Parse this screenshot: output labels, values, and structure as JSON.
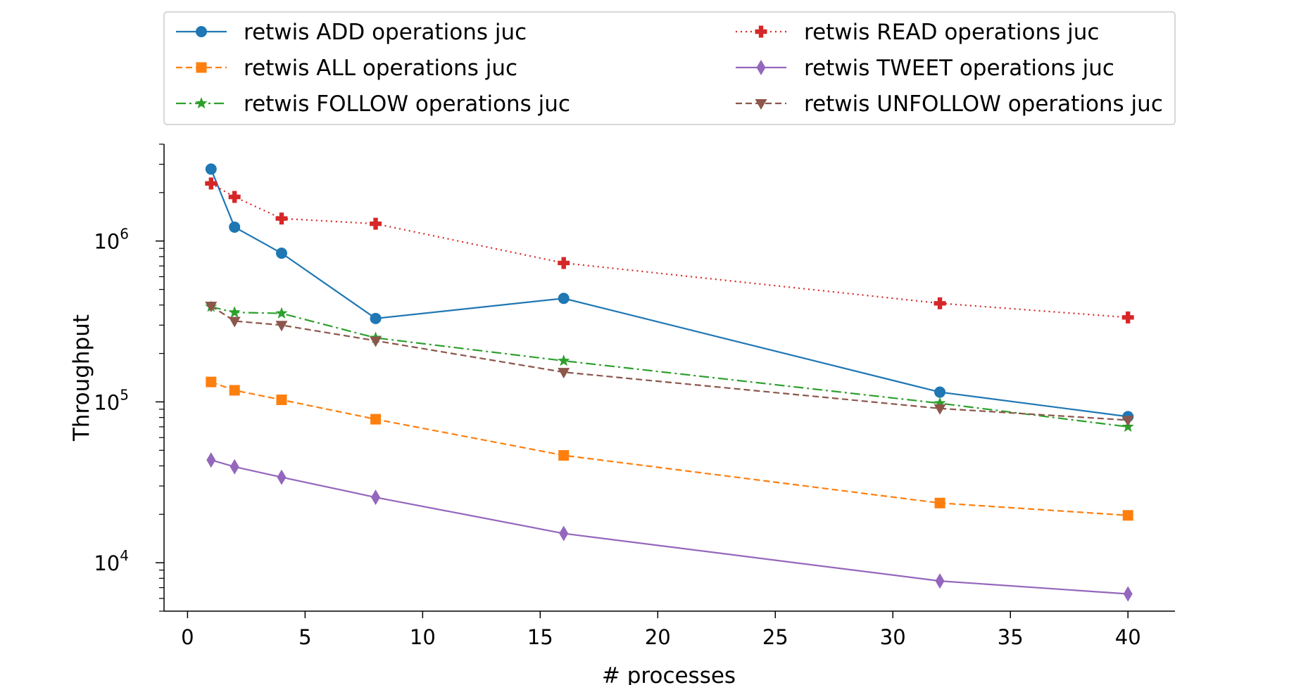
{
  "chart_data": {
    "type": "line",
    "xlabel": "# processes",
    "ylabel": "Throughput",
    "xlim": [
      -1,
      42
    ],
    "ylim": [
      5000,
      4000000
    ],
    "yscale": "log",
    "xticks": [
      0,
      5,
      10,
      15,
      20,
      25,
      30,
      35,
      40
    ],
    "yticks": [
      {
        "base": "10",
        "exp": "4",
        "value": 10000
      },
      {
        "base": "10",
        "exp": "5",
        "value": 100000
      },
      {
        "base": "10",
        "exp": "6",
        "value": 1000000
      }
    ],
    "grid": false,
    "legend_position": "top",
    "x": [
      1,
      2,
      4,
      8,
      16,
      32,
      40
    ],
    "series": [
      {
        "name": "retwis ADD operations juc",
        "color": "#1f77b4",
        "style": "solid",
        "marker": "circle",
        "values": [
          2800000,
          1220000,
          840000,
          330000,
          440000,
          115000,
          81000
        ]
      },
      {
        "name": "retwis ALL operations juc",
        "color": "#ff7f0e",
        "style": "dashed",
        "marker": "square",
        "values": [
          133000,
          118000,
          103000,
          78000,
          46500,
          23500,
          19700
        ]
      },
      {
        "name": "retwis FOLLOW operations juc",
        "color": "#2ca02c",
        "style": "dashdot",
        "marker": "star",
        "values": [
          390000,
          360000,
          355000,
          250000,
          180000,
          98000,
          70000
        ]
      },
      {
        "name": "retwis READ operations juc",
        "color": "#d62728",
        "style": "dotted",
        "marker": "plus",
        "values": [
          2280000,
          1880000,
          1380000,
          1280000,
          730000,
          410000,
          335000
        ]
      },
      {
        "name": "retwis TWEET operations juc",
        "color": "#9467bd",
        "style": "solid",
        "marker": "thin_diamond",
        "values": [
          43500,
          39500,
          34000,
          25500,
          15200,
          7700,
          6400
        ]
      },
      {
        "name": "retwis UNFOLLOW operations juc",
        "color": "#8c564b",
        "style": "dashed",
        "marker": "triangle_down",
        "values": [
          395000,
          318000,
          300000,
          240000,
          153000,
          91000,
          77000
        ]
      }
    ]
  }
}
